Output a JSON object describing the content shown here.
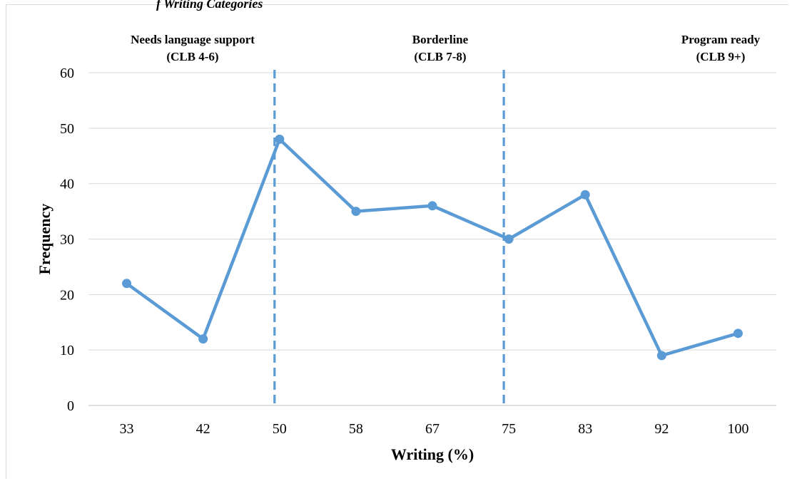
{
  "page": {
    "caption_fragment": "f Writing Categories"
  },
  "chart_data": {
    "type": "line",
    "xlabel": "Writing (%)",
    "ylabel": "Frequency",
    "categories": [
      "33",
      "42",
      "50",
      "58",
      "67",
      "75",
      "83",
      "92",
      "100"
    ],
    "series": [
      {
        "values": [
          22,
          12,
          48,
          35,
          36,
          30,
          38,
          9,
          13
        ],
        "color": "#5b9bd5"
      }
    ],
    "ylim": [
      0,
      60
    ],
    "yticks": [
      0,
      10,
      20,
      30,
      40,
      50,
      60
    ],
    "grid": true,
    "dividers": [
      {
        "after_category": "50",
        "style": "dashed",
        "color": "#5b9bd5"
      },
      {
        "after_category": "75",
        "style": "dashed",
        "color": "#5b9bd5"
      }
    ],
    "regions": [
      {
        "line1": "Needs language support",
        "line2": "(CLB 4-6)"
      },
      {
        "line1": "Borderline",
        "line2": "(CLB 7-8)"
      },
      {
        "line1": "Program ready",
        "line2": "(CLB 9+)"
      }
    ]
  }
}
